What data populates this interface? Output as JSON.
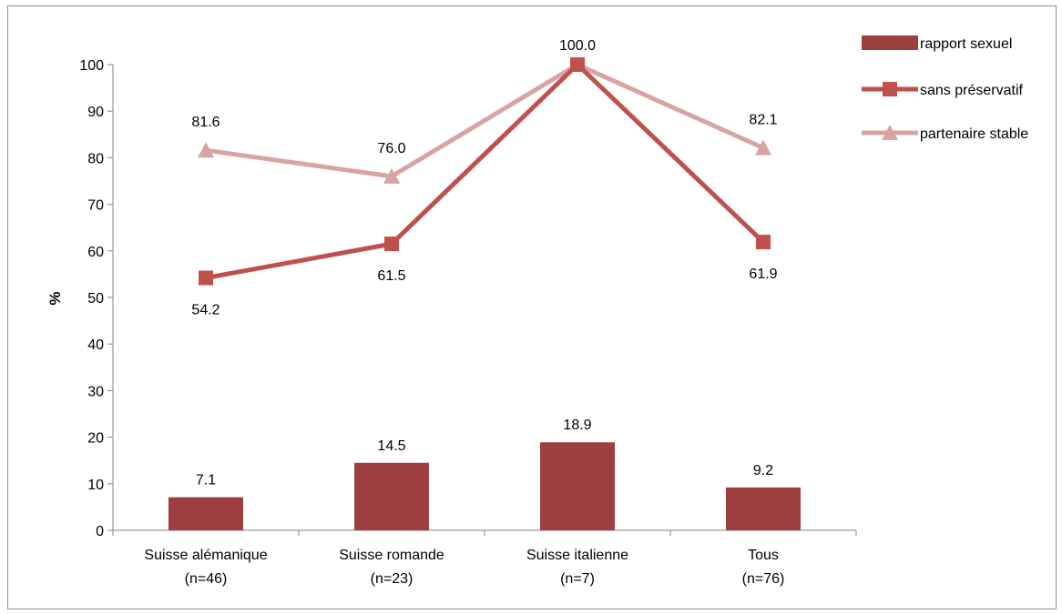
{
  "chart_data": {
    "type": "bar+line",
    "title": "",
    "ylabel": "%",
    "xlabel": "",
    "ylim": [
      0,
      100
    ],
    "yticks": [
      0,
      10,
      20,
      30,
      40,
      50,
      60,
      70,
      80,
      90,
      100
    ],
    "categories": [
      {
        "line1": "Suisse alémanique",
        "line2": "(n=46)"
      },
      {
        "line1": "Suisse  romande",
        "line2": "(n=23)"
      },
      {
        "line1": "Suisse italienne",
        "line2": "(n=7)"
      },
      {
        "line1": "Tous",
        "line2": "(n=76)"
      }
    ],
    "series": [
      {
        "name": "rapport sexuel",
        "kind": "bar",
        "color": "#9e3f3f",
        "values": [
          7.1,
          14.5,
          18.9,
          9.2
        ],
        "labels": [
          "7.1",
          "14.5",
          "18.9",
          "9.2"
        ]
      },
      {
        "name": "sans préservatif",
        "kind": "line",
        "marker": "square",
        "color": "#c0504d",
        "values": [
          54.2,
          61.5,
          100.0,
          61.9
        ],
        "labels": [
          "54.2",
          "61.5",
          "100.0",
          "61.9"
        ]
      },
      {
        "name": "partenaire stable",
        "kind": "line",
        "marker": "triangle",
        "color": "#d9a3a3",
        "values": [
          81.6,
          76.0,
          100.0,
          82.1
        ],
        "labels": [
          "81.6",
          "76.0",
          "",
          "82.1"
        ]
      }
    ],
    "legend": "right",
    "grid": false
  }
}
